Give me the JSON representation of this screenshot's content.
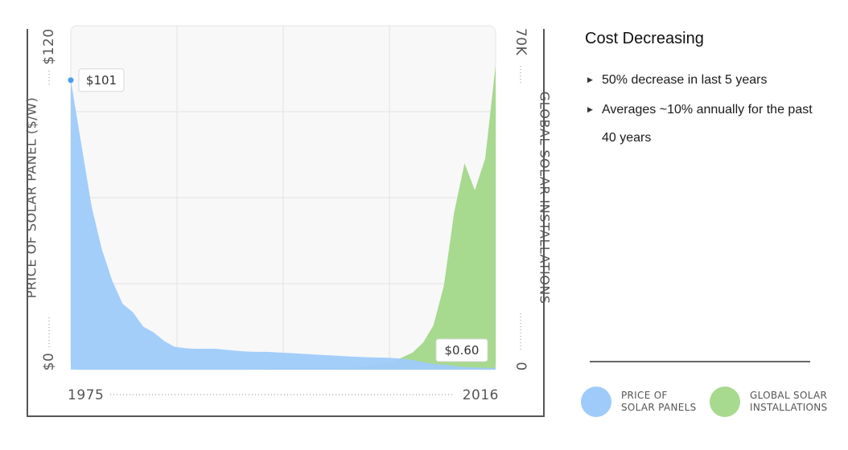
{
  "chart_data": {
    "type": "area",
    "x_start_label": "1975",
    "x_end_label": "2016",
    "xlim": [
      1975,
      2016
    ],
    "y_left": {
      "label": "PRICE OF SOLAR PANEL ($/W)",
      "min_label": "$0",
      "max_label": "$120",
      "range": [
        0,
        120
      ]
    },
    "y_right": {
      "label": "GLOBAL SOLAR INSTALLATIONS",
      "min_label": "0",
      "max_label": "70K",
      "range": [
        0,
        70000
      ]
    },
    "grid": true,
    "series": [
      {
        "axis": "left",
        "color": "#9ecbfa",
        "points": [
          [
            1975,
            101
          ],
          [
            1976,
            79
          ],
          [
            1977,
            57
          ],
          [
            1978,
            42
          ],
          [
            1979,
            31
          ],
          [
            1980,
            23
          ],
          [
            1981,
            20
          ],
          [
            1982,
            15
          ],
          [
            1983,
            13
          ],
          [
            1984,
            10
          ],
          [
            1985,
            8
          ],
          [
            1986,
            7.5
          ],
          [
            1987,
            7.3
          ],
          [
            1988,
            7.3
          ],
          [
            1989,
            7.3
          ],
          [
            1990,
            6.9
          ],
          [
            1991,
            6.6
          ],
          [
            1992,
            6.3
          ],
          [
            1993,
            6.2
          ],
          [
            1994,
            6.2
          ],
          [
            1995,
            6.0
          ],
          [
            1996,
            5.8
          ],
          [
            1997,
            5.6
          ],
          [
            1998,
            5.4
          ],
          [
            1999,
            5.2
          ],
          [
            2000,
            5.0
          ],
          [
            2001,
            4.8
          ],
          [
            2002,
            4.6
          ],
          [
            2003,
            4.4
          ],
          [
            2004,
            4.3
          ],
          [
            2005,
            4.2
          ],
          [
            2006,
            4.1
          ],
          [
            2007,
            3.8
          ],
          [
            2008,
            3.4
          ],
          [
            2009,
            2.6
          ],
          [
            2010,
            2.0
          ],
          [
            2011,
            1.7
          ],
          [
            2012,
            1.3
          ],
          [
            2013,
            0.9
          ],
          [
            2014,
            0.75
          ],
          [
            2015,
            0.65
          ],
          [
            2016,
            0.6
          ]
        ]
      },
      {
        "axis": "right",
        "color": "#a7d98f",
        "points": [
          [
            1975,
            0
          ],
          [
            1990,
            0
          ],
          [
            1995,
            200
          ],
          [
            2000,
            300
          ],
          [
            2003,
            500
          ],
          [
            2006,
            1500
          ],
          [
            2008,
            3500
          ],
          [
            2009,
            5500
          ],
          [
            2010,
            9000
          ],
          [
            2011,
            17000
          ],
          [
            2012,
            32000
          ],
          [
            2013,
            42000
          ],
          [
            2014,
            36500
          ],
          [
            2015,
            43000
          ],
          [
            2016,
            62000
          ]
        ]
      }
    ],
    "annotations": [
      {
        "text": "$101",
        "x": 1975,
        "y": 101,
        "axis": "left"
      },
      {
        "text": "$0.60",
        "x": 2016,
        "y": 0.6,
        "axis": "left"
      }
    ]
  },
  "panel": {
    "title": "Cost Decreasing",
    "bullets": [
      "50% decrease in last 5 years",
      "Averages ~10% annually for the past 40 years"
    ]
  },
  "legend": [
    {
      "label": "PRICE OF\nSOLAR PANELS",
      "color": "#9ecbfa"
    },
    {
      "label": "GLOBAL SOLAR\nINSTALLATIONS",
      "color": "#a7d98f"
    }
  ]
}
